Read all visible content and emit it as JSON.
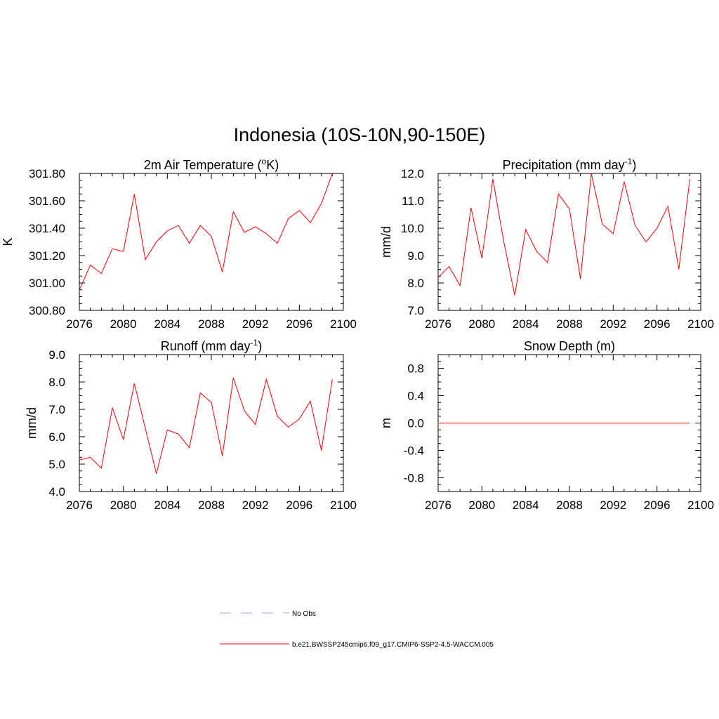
{
  "figure": {
    "title": "Indonesia (10S-10N,90-150E)"
  },
  "chart_data": [
    {
      "type": "line",
      "title": "2m Air Temperature (°K)",
      "title_main": "2m Air Temperature (",
      "title_sup": "o",
      "title_tail": "K)",
      "ylabel": "K",
      "xlim": [
        2076,
        2100
      ],
      "ylim": [
        300.8,
        301.8
      ],
      "x_ticks": [
        "2076",
        "2080",
        "2084",
        "2088",
        "2092",
        "2096",
        "2100"
      ],
      "y_ticks": [
        "300.80",
        "301.00",
        "301.20",
        "301.40",
        "301.60",
        "301.80"
      ],
      "series": [
        {
          "name": "b.e21.BWSSP245cmip6.f09_g17.CMIP6-SSP2-4.5-WACCM.005",
          "x": [
            2076,
            2077,
            2078,
            2079,
            2080,
            2081,
            2082,
            2083,
            2084,
            2085,
            2086,
            2087,
            2088,
            2089,
            2090,
            2091,
            2092,
            2093,
            2094,
            2095,
            2096,
            2097,
            2098,
            2099
          ],
          "values": [
            300.95,
            301.13,
            301.07,
            301.25,
            301.23,
            301.65,
            301.17,
            301.3,
            301.38,
            301.42,
            301.29,
            301.42,
            301.34,
            301.08,
            301.52,
            301.37,
            301.41,
            301.36,
            301.29,
            301.47,
            301.53,
            301.44,
            301.58,
            301.8
          ]
        }
      ]
    },
    {
      "type": "line",
      "title": "Precipitation (mm day-1)",
      "title_main": "Precipitation (mm day",
      "title_sup": "-1",
      "title_tail": ")",
      "ylabel": "mm/d",
      "xlim": [
        2076,
        2100
      ],
      "ylim": [
        7.0,
        12.0
      ],
      "x_ticks": [
        "2076",
        "2080",
        "2084",
        "2088",
        "2092",
        "2096",
        "2100"
      ],
      "y_ticks": [
        "7.0",
        "8.0",
        "9.0",
        "10.0",
        "11.0",
        "12.0"
      ],
      "series": [
        {
          "name": "b.e21.BWSSP245cmip6.f09_g17.CMIP6-SSP2-4.5-WACCM.005",
          "x": [
            2076,
            2077,
            2078,
            2079,
            2080,
            2081,
            2082,
            2083,
            2084,
            2085,
            2086,
            2087,
            2088,
            2089,
            2090,
            2091,
            2092,
            2093,
            2094,
            2095,
            2096,
            2097,
            2098,
            2099
          ],
          "values": [
            8.2,
            8.6,
            7.9,
            10.75,
            8.9,
            11.8,
            9.5,
            7.55,
            9.95,
            9.15,
            8.75,
            11.25,
            10.7,
            8.15,
            12.0,
            10.15,
            9.8,
            11.7,
            10.1,
            9.5,
            10.0,
            10.8,
            8.5,
            11.8
          ]
        }
      ]
    },
    {
      "type": "line",
      "title": "Runoff (mm day-1)",
      "title_main": "Runoff (mm day",
      "title_sup": "-1",
      "title_tail": ")",
      "ylabel": "mm/d",
      "xlim": [
        2076,
        2100
      ],
      "ylim": [
        4.0,
        9.0
      ],
      "x_ticks": [
        "2076",
        "2080",
        "2084",
        "2088",
        "2092",
        "2096",
        "2100"
      ],
      "y_ticks": [
        "4.0",
        "5.0",
        "6.0",
        "7.0",
        "8.0",
        "9.0"
      ],
      "series": [
        {
          "name": "b.e21.BWSSP245cmip6.f09_g17.CMIP6-SSP2-4.5-WACCM.005",
          "x": [
            2076,
            2077,
            2078,
            2079,
            2080,
            2081,
            2082,
            2083,
            2084,
            2085,
            2086,
            2087,
            2088,
            2089,
            2090,
            2091,
            2092,
            2093,
            2094,
            2095,
            2096,
            2097,
            2098,
            2099
          ],
          "values": [
            5.15,
            5.25,
            4.85,
            7.05,
            5.9,
            7.95,
            6.3,
            4.65,
            6.25,
            6.1,
            5.6,
            7.6,
            7.25,
            5.3,
            8.15,
            6.95,
            6.45,
            8.1,
            6.75,
            6.35,
            6.65,
            7.3,
            5.5,
            8.1
          ]
        }
      ]
    },
    {
      "type": "line",
      "title": "Snow Depth (m)",
      "title_main": "Snow Depth (m)",
      "title_sup": "",
      "title_tail": "",
      "ylabel": "m",
      "xlim": [
        2076,
        2100
      ],
      "ylim": [
        -1.0,
        1.0
      ],
      "x_ticks": [
        "2076",
        "2080",
        "2084",
        "2088",
        "2092",
        "2096",
        "2100"
      ],
      "y_ticks": [
        "-0.8",
        "-0.4",
        "0.0",
        "0.4",
        "0.8"
      ],
      "y_tick_values": [
        -0.8,
        -0.4,
        0.0,
        0.4,
        0.8
      ],
      "series": [
        {
          "name": "b.e21.BWSSP245cmip6.f09_g17.CMIP6-SSP2-4.5-WACCM.005",
          "x": [
            2076,
            2099
          ],
          "values": [
            0.0,
            0.0
          ]
        }
      ]
    }
  ],
  "legend": {
    "items": [
      {
        "label": "No Obs",
        "style": "dashed",
        "color": "#a0a0e0"
      },
      {
        "label": "b.e21.BWSSP245cmip6.f09_g17.CMIP6-SSP2-4.5-WACCM.005",
        "style": "solid",
        "color": "#ff0000"
      }
    ]
  }
}
